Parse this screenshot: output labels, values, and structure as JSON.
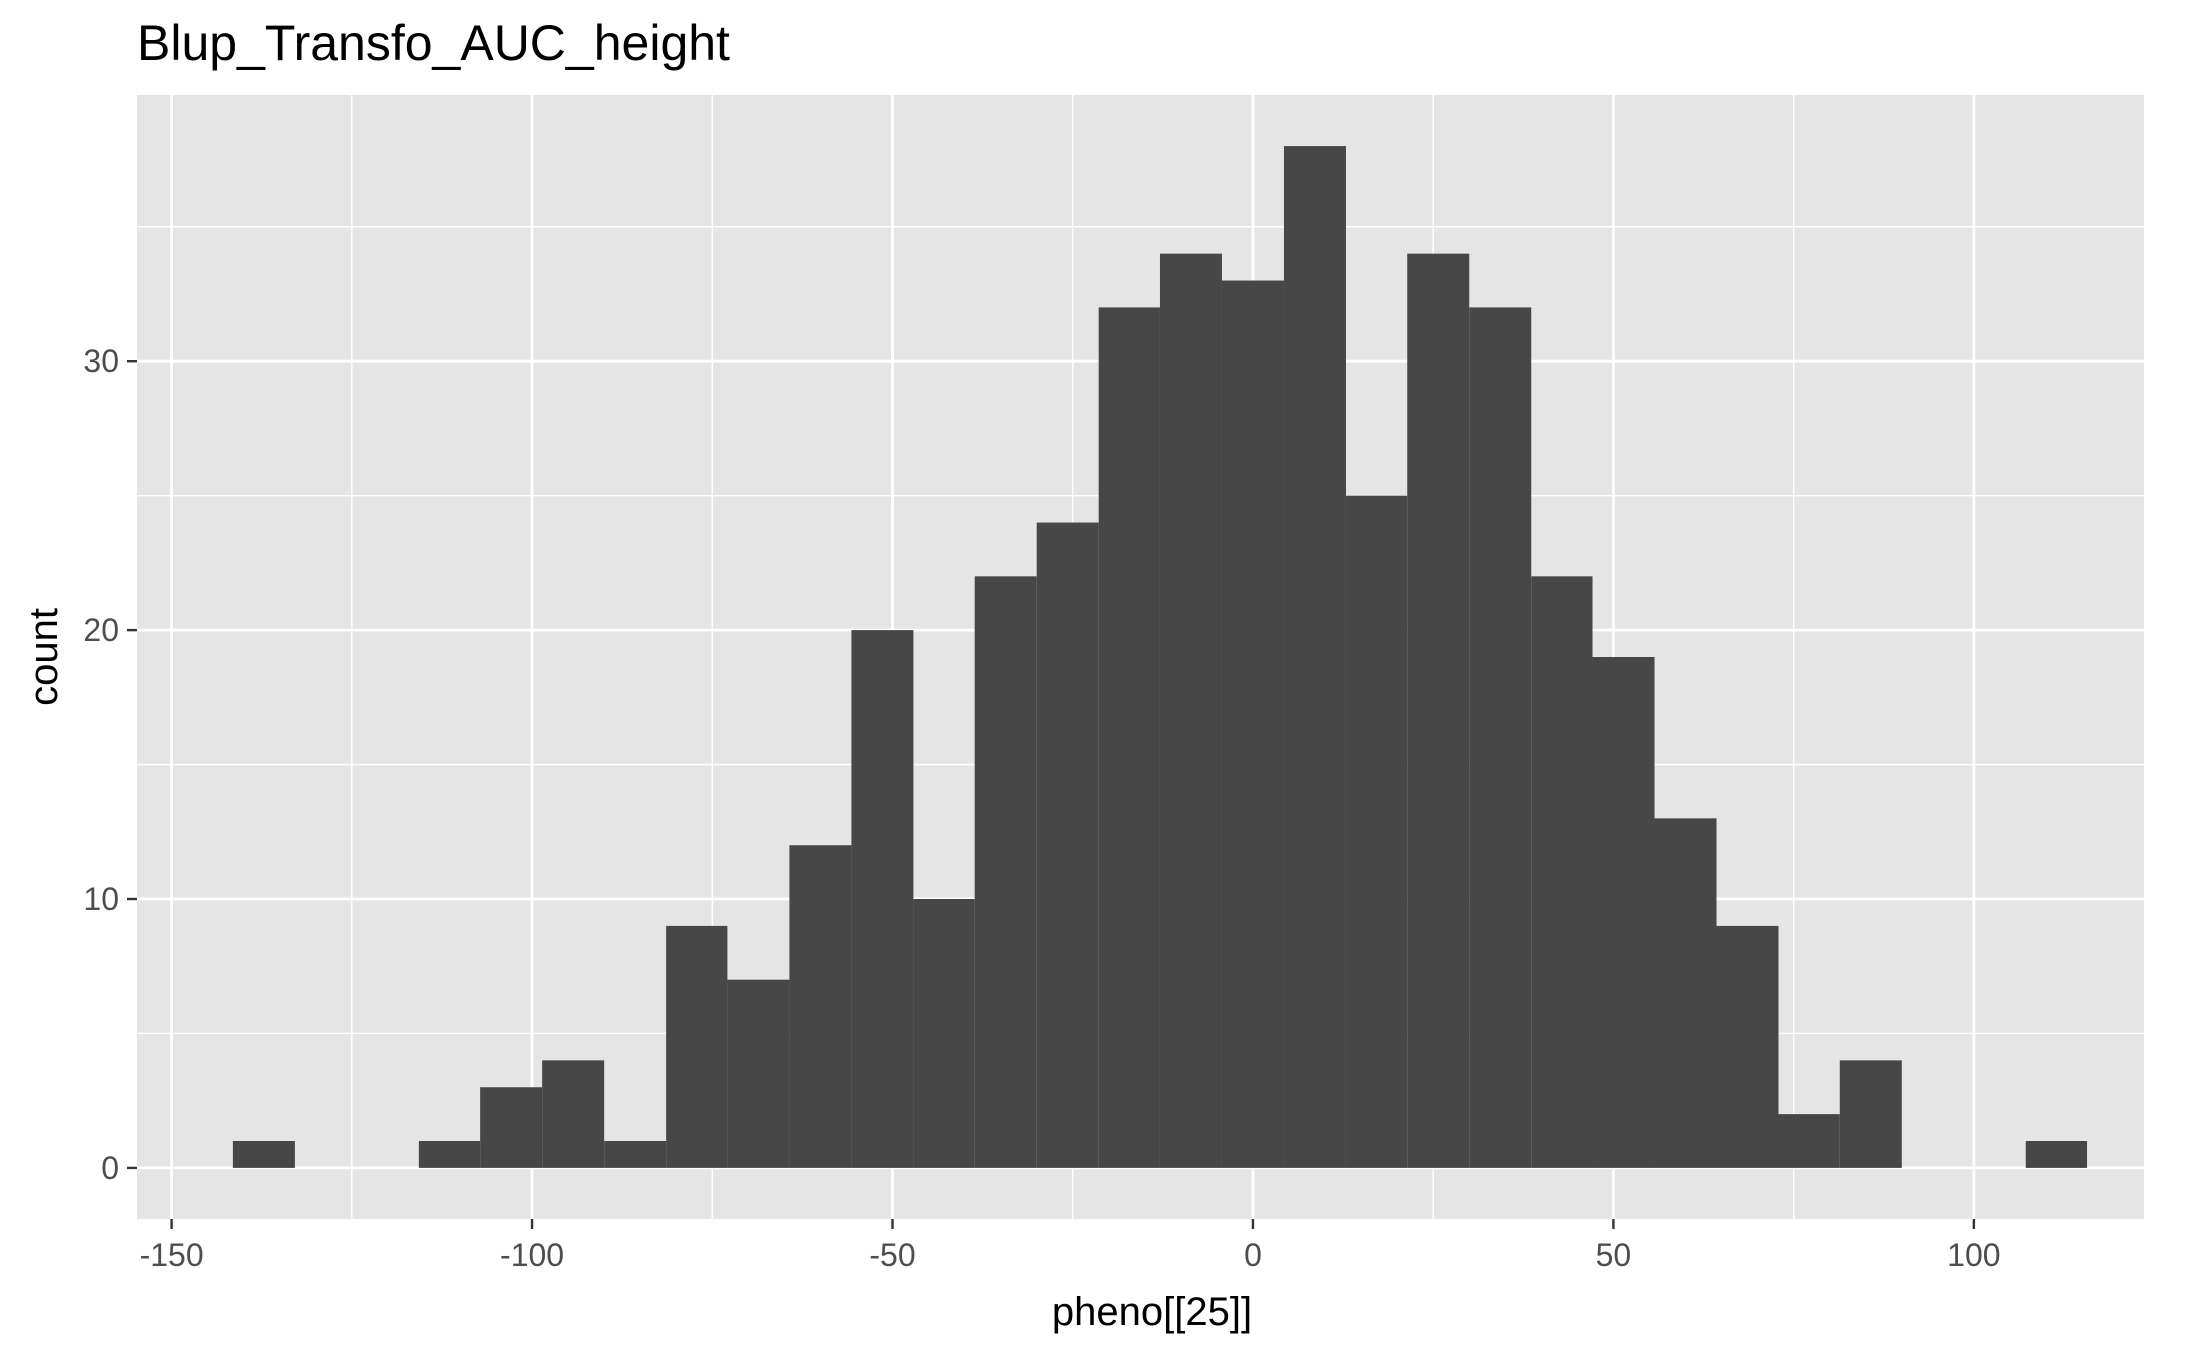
{
  "chart_data": {
    "type": "bar",
    "title": "Blup_Transfo_AUC_height",
    "xlabel": "pheno[[25]]",
    "ylabel": "count",
    "xlim": [
      -154.8,
      123.6
    ],
    "ylim": [
      -1.9,
      39.9
    ],
    "x_ticks": [
      -150,
      -100,
      -50,
      0,
      50,
      100
    ],
    "x_tick_labels": [
      "-150",
      "-100",
      "-50",
      "0",
      "50",
      "100"
    ],
    "y_ticks": [
      0,
      10,
      20,
      30
    ],
    "y_tick_labels": [
      "0",
      "10",
      "20",
      "30"
    ],
    "grid": true,
    "bin_width": 8.58,
    "bins": [
      {
        "x0": -141.5,
        "x1": -132.9,
        "count": 1
      },
      {
        "x0": -132.9,
        "x1": -124.3,
        "count": 0
      },
      {
        "x0": -124.3,
        "x1": -115.7,
        "count": 0
      },
      {
        "x0": -115.7,
        "x1": -107.2,
        "count": 1
      },
      {
        "x0": -107.2,
        "x1": -98.6,
        "count": 3
      },
      {
        "x0": -98.6,
        "x1": -90.0,
        "count": 4
      },
      {
        "x0": -90.0,
        "x1": -81.4,
        "count": 1
      },
      {
        "x0": -81.4,
        "x1": -72.9,
        "count": 9
      },
      {
        "x0": -72.9,
        "x1": -64.3,
        "count": 7
      },
      {
        "x0": -64.3,
        "x1": -55.7,
        "count": 12
      },
      {
        "x0": -55.7,
        "x1": -47.1,
        "count": 20
      },
      {
        "x0": -47.1,
        "x1": -38.6,
        "count": 10
      },
      {
        "x0": -38.6,
        "x1": -30.0,
        "count": 22
      },
      {
        "x0": -30.0,
        "x1": -21.4,
        "count": 24
      },
      {
        "x0": -21.4,
        "x1": -12.9,
        "count": 32
      },
      {
        "x0": -12.9,
        "x1": -4.3,
        "count": 34
      },
      {
        "x0": -4.3,
        "x1": 4.3,
        "count": 33
      },
      {
        "x0": 4.3,
        "x1": 12.9,
        "count": 38
      },
      {
        "x0": 12.9,
        "x1": 21.4,
        "count": 25
      },
      {
        "x0": 21.4,
        "x1": 30.0,
        "count": 34
      },
      {
        "x0": 30.0,
        "x1": 38.6,
        "count": 32
      },
      {
        "x0": 38.6,
        "x1": 47.1,
        "count": 22
      },
      {
        "x0": 47.1,
        "x1": 55.7,
        "count": 19
      },
      {
        "x0": 55.7,
        "x1": 64.3,
        "count": 13
      },
      {
        "x0": 64.3,
        "x1": 72.9,
        "count": 9
      },
      {
        "x0": 72.9,
        "x1": 81.4,
        "count": 2
      },
      {
        "x0": 81.4,
        "x1": 90.0,
        "count": 4
      },
      {
        "x0": 90.0,
        "x1": 98.6,
        "count": 0
      },
      {
        "x0": 98.6,
        "x1": 107.2,
        "count": 0
      },
      {
        "x0": 107.2,
        "x1": 115.7,
        "count": 1
      }
    ],
    "colors": {
      "bar": "#474747",
      "panel": "#e5e5e5",
      "grid": "#ffffff",
      "tick_text": "#4d4d4d"
    }
  }
}
